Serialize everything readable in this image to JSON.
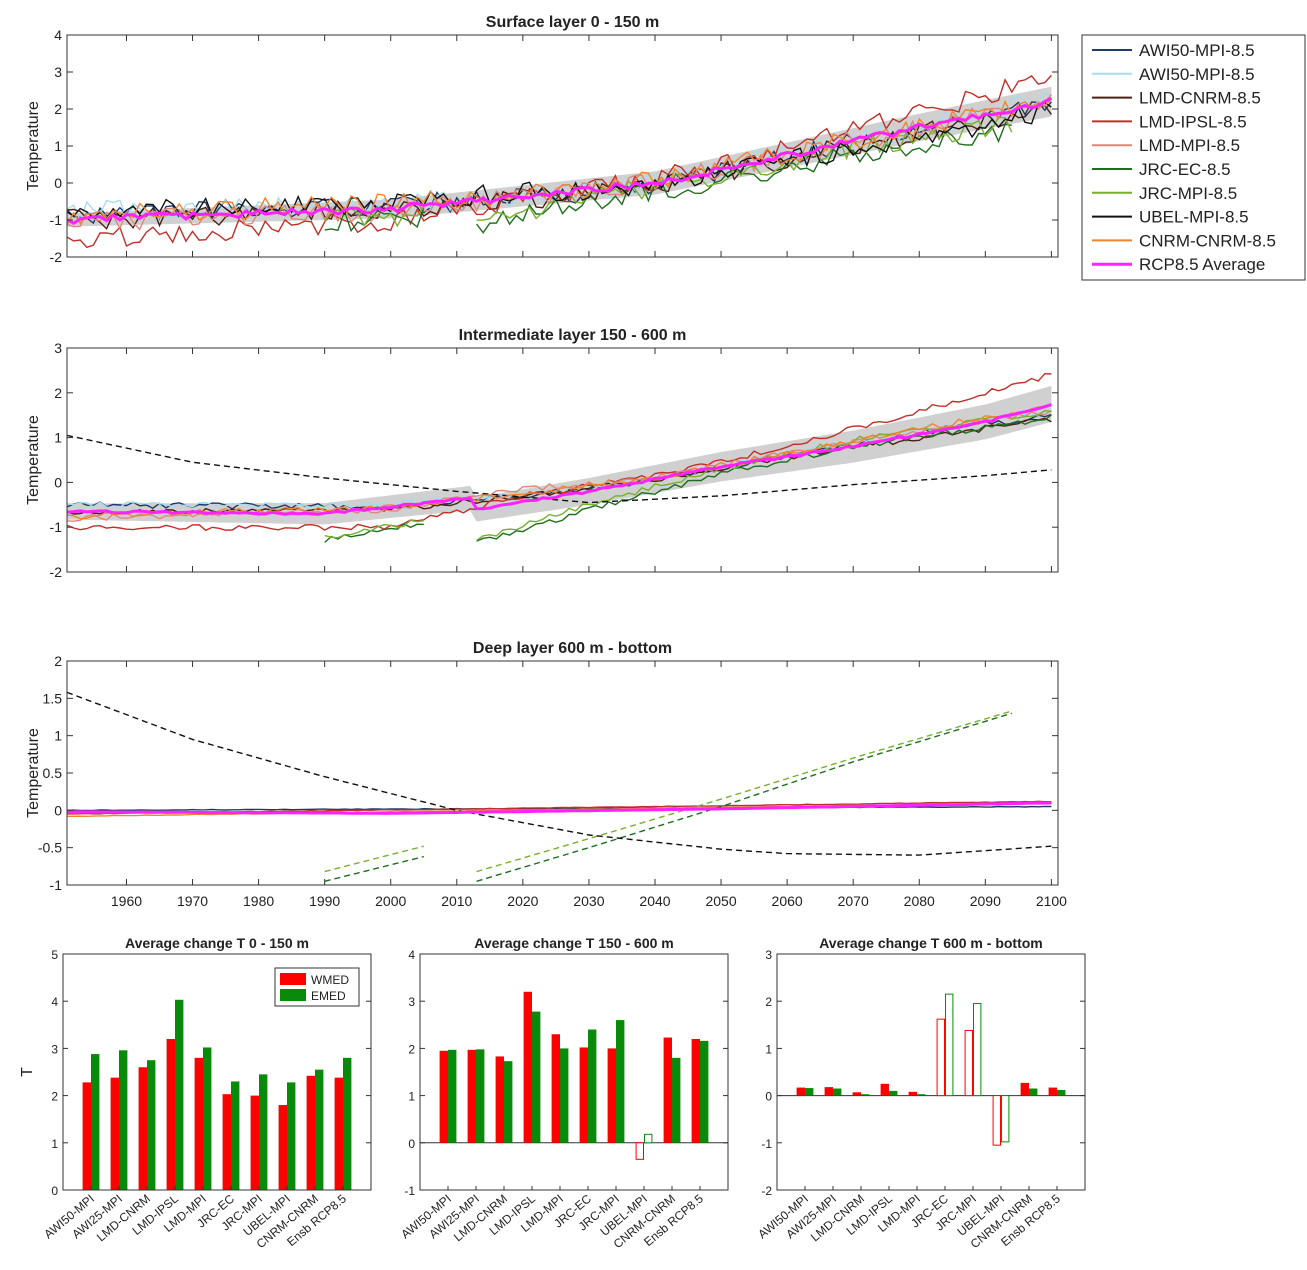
{
  "chart_data": [
    {
      "type": "line",
      "title": "Surface layer 0 - 150 m",
      "ylabel": "Temperature",
      "xlim": [
        1951,
        2101
      ],
      "ylim": [
        -2,
        4
      ],
      "yticks": [
        -2,
        -1,
        0,
        1,
        2,
        3,
        4
      ],
      "grid": false,
      "legend_position": "outside-top-right",
      "shaded_band": "ensemble spread (grey)",
      "series": [
        {
          "name": "AWI50-MPI-8.5",
          "color": "#1f3a68",
          "x": [
            1951,
            2000,
            2020,
            2040,
            2060,
            2080,
            2100
          ],
          "y": [
            -0.85,
            -0.6,
            -0.4,
            -0.05,
            0.7,
            1.5,
            2.2
          ]
        },
        {
          "name": "AWI50-MPI-8.5",
          "color": "#a8dcea",
          "x": [
            1951,
            2000,
            2020,
            2040,
            2060,
            2080,
            2100
          ],
          "y": [
            -0.75,
            -0.6,
            -0.35,
            0.0,
            0.8,
            1.55,
            2.25
          ]
        },
        {
          "name": "LMD-CNRM-8.5",
          "color": "#4a1f14",
          "x": [
            1951,
            2000,
            2020,
            2040,
            2060,
            2080,
            2100
          ],
          "y": [
            -1.0,
            -0.7,
            -0.45,
            -0.05,
            0.65,
            1.35,
            1.95
          ]
        },
        {
          "name": "LMD-IPSL-8.5",
          "color": "#c0302a",
          "x": [
            1951,
            2000,
            2020,
            2040,
            2060,
            2080,
            2100
          ],
          "y": [
            -1.55,
            -1.0,
            -0.45,
            0.1,
            0.9,
            1.9,
            2.85
          ]
        },
        {
          "name": "LMD-MPI-8.5",
          "color": "#e0877a",
          "x": [
            1951,
            2000,
            2020,
            2040,
            2060,
            2080,
            2100
          ],
          "y": [
            -1.05,
            -0.75,
            -0.35,
            0.0,
            0.75,
            1.5,
            2.25
          ]
        },
        {
          "name": "JRC-EC-8.5",
          "color": "#1d6e1d",
          "x": [
            1990,
            2005,
            2013,
            2030,
            2050,
            2070,
            2094
          ],
          "y": [
            -1.05,
            -0.9,
            -1.1,
            -0.55,
            0.05,
            0.75,
            1.45
          ]
        },
        {
          "name": "JRC-MPI-8.5",
          "color": "#78b02f",
          "x": [
            1990,
            2005,
            2013,
            2030,
            2050,
            2070,
            2094
          ],
          "y": [
            -1.0,
            -0.85,
            -1.0,
            -0.4,
            0.2,
            0.95,
            1.6
          ]
        },
        {
          "name": "UBEL-MPI-8.5",
          "color": "#111111",
          "x": [
            1951,
            2000,
            2020,
            2040,
            2060,
            2080,
            2100
          ],
          "y": [
            -0.8,
            -0.55,
            -0.25,
            -0.1,
            0.6,
            1.2,
            2.0
          ]
        },
        {
          "name": "CNRM-CNRM-8.5",
          "color": "#ee8430",
          "x": [
            1951,
            2000,
            2020,
            2040,
            2060,
            2080,
            2100
          ],
          "y": [
            -0.9,
            -0.55,
            -0.3,
            0.05,
            0.8,
            1.5,
            2.2
          ]
        },
        {
          "name": "RCP8.5 Average",
          "color": "#ff22ff",
          "x": [
            1951,
            2000,
            2020,
            2040,
            2060,
            2080,
            2100
          ],
          "y": [
            -1.0,
            -0.7,
            -0.35,
            0.0,
            0.75,
            1.5,
            2.2
          ]
        }
      ]
    },
    {
      "type": "line",
      "title": "Intermediate layer 150 - 600 m",
      "ylabel": "Temperature",
      "xlim": [
        1951,
        2101
      ],
      "ylim": [
        -2,
        3
      ],
      "yticks": [
        -2,
        -1,
        0,
        1,
        2,
        3
      ],
      "grid": false,
      "series": [
        {
          "name": "AWI50-MPI-8.5",
          "color": "#1f3a68",
          "x": [
            1951,
            2000,
            2020,
            2040,
            2060,
            2080,
            2100
          ],
          "y": [
            -0.5,
            -0.55,
            -0.3,
            0.05,
            0.6,
            1.1,
            1.5
          ]
        },
        {
          "name": "AWI50-MPI-8.5",
          "color": "#a8dcea",
          "x": [
            1951,
            2000,
            2020,
            2040,
            2060,
            2080,
            2100
          ],
          "y": [
            -0.5,
            -0.5,
            -0.25,
            0.05,
            0.65,
            1.15,
            1.6
          ]
        },
        {
          "name": "LMD-CNRM-8.5",
          "color": "#4a1f14",
          "x": [
            1951,
            2000,
            2020,
            2040,
            2060,
            2080,
            2100
          ],
          "y": [
            -0.7,
            -0.6,
            -0.3,
            0.05,
            0.55,
            1.0,
            1.4
          ]
        },
        {
          "name": "LMD-IPSL-8.5",
          "color": "#c0302a",
          "x": [
            1951,
            2000,
            2020,
            2040,
            2060,
            2080,
            2100
          ],
          "y": [
            -1.0,
            -1.0,
            -0.3,
            0.15,
            0.8,
            1.6,
            2.4
          ]
        },
        {
          "name": "LMD-MPI-8.5",
          "color": "#e0877a",
          "x": [
            1951,
            2000,
            2020,
            2040,
            2060,
            2080,
            2100
          ],
          "y": [
            -0.8,
            -0.6,
            -0.15,
            0.1,
            0.65,
            1.15,
            1.6
          ]
        },
        {
          "name": "JRC-EC-8.5",
          "color": "#1d6e1d",
          "x": [
            1990,
            2005,
            2013,
            2030,
            2050,
            2070,
            2100
          ],
          "y": [
            -1.3,
            -0.9,
            -1.35,
            -0.6,
            0.2,
            0.8,
            1.45
          ]
        },
        {
          "name": "JRC-MPI-8.5",
          "color": "#78b02f",
          "x": [
            1990,
            2005,
            2013,
            2030,
            2050,
            2070,
            2100
          ],
          "y": [
            -1.25,
            -0.85,
            -1.3,
            -0.5,
            0.3,
            0.95,
            1.6
          ]
        },
        {
          "name": "UBEL-MPI-8.5",
          "color": "#111111",
          "x": [
            1951,
            1970,
            1990,
            2010,
            2030,
            2050,
            2070,
            2090,
            2100
          ],
          "y": [
            1.05,
            0.45,
            0.1,
            -0.2,
            -0.45,
            -0.3,
            -0.05,
            0.15,
            0.28
          ],
          "style": "dashed"
        },
        {
          "name": "CNRM-CNRM-8.5",
          "color": "#ee8430",
          "x": [
            1951,
            2000,
            2020,
            2040,
            2060,
            2080,
            2100
          ],
          "y": [
            -0.75,
            -0.55,
            -0.25,
            0.1,
            0.65,
            1.2,
            1.7
          ]
        },
        {
          "name": "RCP8.5 Average",
          "color": "#ff22ff",
          "x": [
            1951,
            1990,
            2012,
            2013,
            2030,
            2050,
            2070,
            2090,
            2100
          ],
          "y": [
            -0.65,
            -0.7,
            -0.35,
            -0.6,
            -0.2,
            0.35,
            0.8,
            1.35,
            1.75
          ]
        }
      ]
    },
    {
      "type": "line",
      "title": "Deep layer 600 m - bottom",
      "ylabel": "Temperature",
      "xlim": [
        1951,
        2101
      ],
      "ylim": [
        -1,
        2
      ],
      "yticks": [
        -1,
        -0.5,
        0,
        0.5,
        1,
        1.5,
        2
      ],
      "xticks": [
        1960,
        1970,
        1980,
        1990,
        2000,
        2010,
        2020,
        2030,
        2040,
        2050,
        2060,
        2070,
        2080,
        2090,
        2100
      ],
      "grid": false,
      "series": [
        {
          "name": "AWI50-MPI-8.5",
          "color": "#1f3a68",
          "x": [
            1951,
            2100
          ],
          "y": [
            0.0,
            0.05
          ]
        },
        {
          "name": "LMD-IPSL-8.5",
          "color": "#c0302a",
          "x": [
            1951,
            2100
          ],
          "y": [
            -0.05,
            0.12
          ]
        },
        {
          "name": "CNRM-CNRM-8.5",
          "color": "#ee8430",
          "x": [
            1951,
            2100
          ],
          "y": [
            -0.08,
            0.1
          ]
        },
        {
          "name": "JRC-EC-8.5",
          "color": "#1d6e1d",
          "x": [
            1990,
            2005,
            2013,
            2030,
            2050,
            2070,
            2094
          ],
          "y": [
            -0.95,
            -0.62,
            -0.95,
            -0.5,
            0.05,
            0.65,
            1.3
          ],
          "style": "dashed"
        },
        {
          "name": "JRC-MPI-8.5",
          "color": "#78b02f",
          "x": [
            1990,
            2005,
            2013,
            2030,
            2050,
            2070,
            2094
          ],
          "y": [
            -0.82,
            -0.48,
            -0.82,
            -0.38,
            0.15,
            0.7,
            1.33
          ],
          "style": "dashed"
        },
        {
          "name": "UBEL-MPI-8.5",
          "color": "#111111",
          "x": [
            1951,
            1970,
            1990,
            2010,
            2030,
            2050,
            2060,
            2080,
            2100
          ],
          "y": [
            1.58,
            0.95,
            0.45,
            0.0,
            -0.33,
            -0.52,
            -0.58,
            -0.6,
            -0.48
          ],
          "style": "dashed"
        },
        {
          "name": "RCP8.5 Average",
          "color": "#ff22ff",
          "x": [
            1951,
            2000,
            2050,
            2100
          ],
          "y": [
            -0.02,
            -0.04,
            0.02,
            0.1
          ]
        }
      ]
    },
    {
      "type": "bar",
      "title": "Average change T 0 - 150 m",
      "ylabel": "T",
      "ylim": [
        0,
        5
      ],
      "yticks": [
        0,
        1,
        2,
        3,
        4,
        5
      ],
      "categories": [
        "AWI50-MPI",
        "AWI25-MPI",
        "LMD-CNRM",
        "LMD-IPSL",
        "LMD-MPI",
        "JRC-EC",
        "JRC-MPI",
        "UBEL-MPI",
        "CNRM-CNRM",
        "Ensb RCP8.5"
      ],
      "legend_position": "top-right",
      "series": [
        {
          "name": "WMED",
          "color": "#ff0000",
          "values": [
            2.28,
            2.38,
            2.6,
            3.2,
            2.8,
            2.03,
            2.0,
            1.8,
            2.42,
            2.38
          ]
        },
        {
          "name": "EMED",
          "color": "#0a8a0a",
          "values": [
            2.88,
            2.96,
            2.75,
            4.03,
            3.02,
            2.3,
            2.45,
            2.28,
            2.55,
            2.8
          ]
        }
      ]
    },
    {
      "type": "bar",
      "title": "Average change T 150 - 600 m",
      "ylim": [
        -1,
        4
      ],
      "yticks": [
        -1,
        0,
        1,
        2,
        3,
        4
      ],
      "categories": [
        "AWI50-MPI",
        "AWI25-MPI",
        "LMD-CNRM",
        "LMD-IPSL",
        "LMD-MPI",
        "JRC-EC",
        "JRC-MPI",
        "UBEL-MPI",
        "CNRM-CNRM",
        "Ensb RCP8.5"
      ],
      "hollow_categories": [
        "UBEL-MPI"
      ],
      "series": [
        {
          "name": "WMED",
          "color": "#ff0000",
          "values": [
            1.95,
            1.97,
            1.83,
            3.2,
            2.3,
            2.02,
            2.0,
            -0.35,
            2.23,
            2.2
          ]
        },
        {
          "name": "EMED",
          "color": "#0a8a0a",
          "values": [
            1.97,
            1.98,
            1.73,
            2.78,
            2.0,
            2.4,
            2.6,
            0.18,
            1.8,
            2.16
          ]
        }
      ]
    },
    {
      "type": "bar",
      "title": "Average change T 600 m - bottom",
      "ylim": [
        -2,
        3
      ],
      "yticks": [
        -2,
        -1,
        0,
        1,
        2,
        3
      ],
      "categories": [
        "AWI50-MPI",
        "AWI25-MPI",
        "LMD-CNRM",
        "LMD-IPSL",
        "LMD-MPI",
        "JRC-EC",
        "JRC-MPI",
        "UBEL-MPI",
        "CNRM-CNRM",
        "Ensb RCP8.5"
      ],
      "hollow_categories": [
        "JRC-EC",
        "JRC-MPI",
        "UBEL-MPI"
      ],
      "series": [
        {
          "name": "WMED",
          "color": "#ff0000",
          "values": [
            0.17,
            0.18,
            0.07,
            0.25,
            0.08,
            1.62,
            1.38,
            -1.05,
            0.27,
            0.17
          ]
        },
        {
          "name": "EMED",
          "color": "#0a8a0a",
          "values": [
            0.16,
            0.15,
            0.03,
            0.1,
            0.03,
            2.15,
            1.95,
            -0.98,
            0.15,
            0.12
          ]
        }
      ]
    }
  ]
}
